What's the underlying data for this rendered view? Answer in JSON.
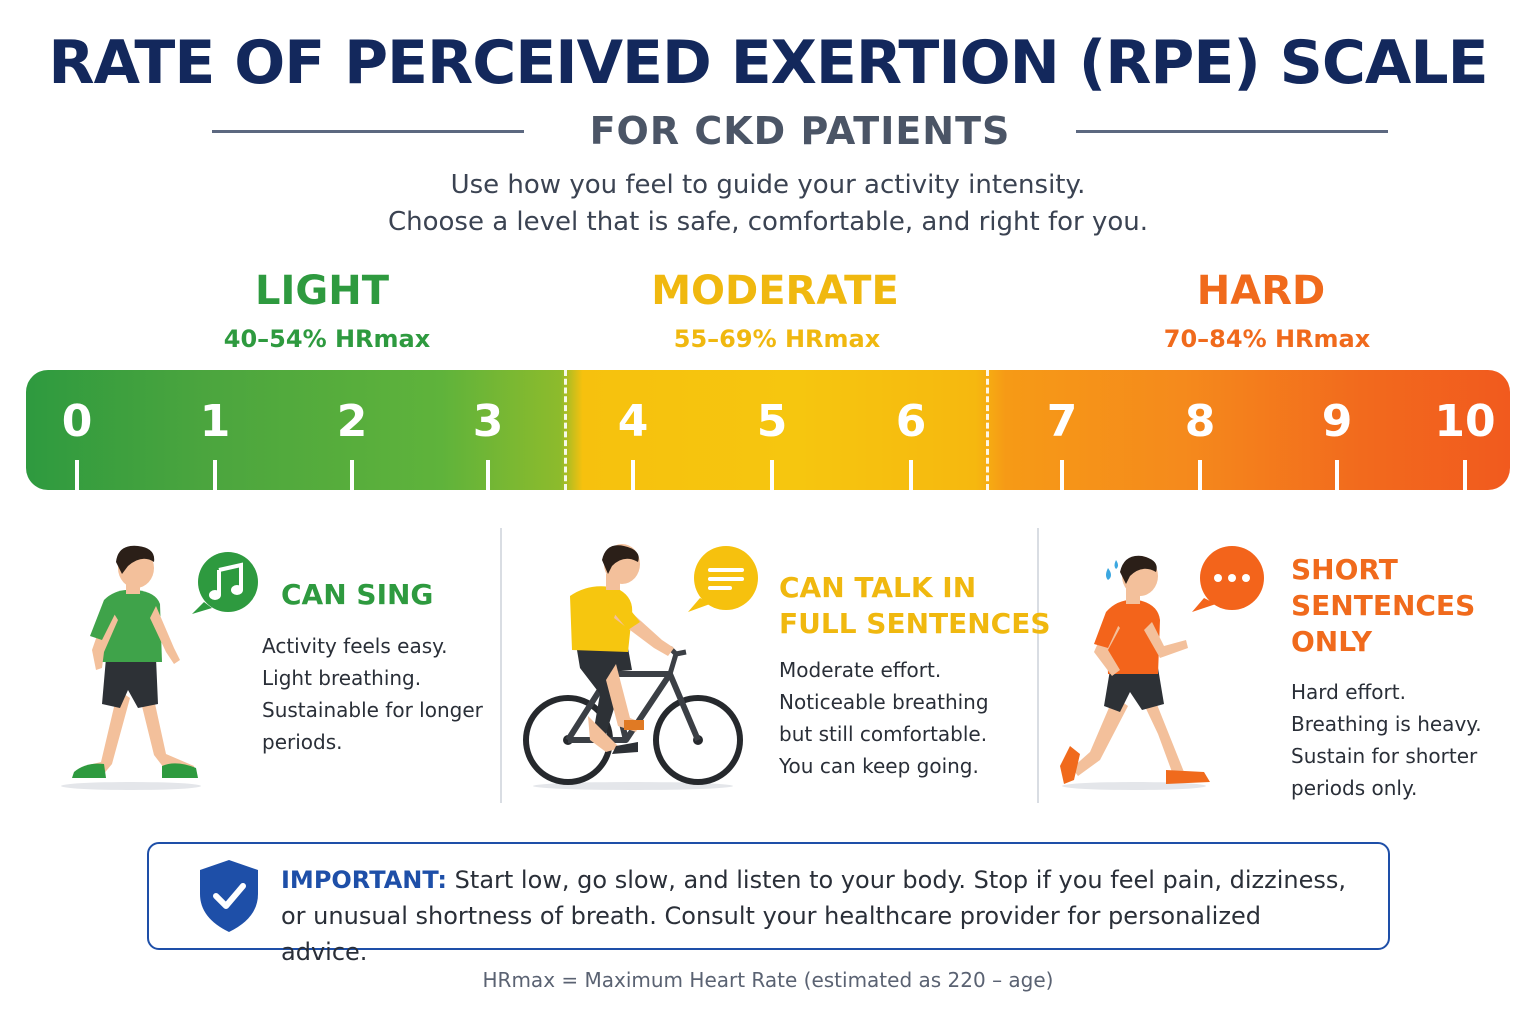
{
  "title": "RATE OF PERCEIVED EXERTION (RPE) SCALE",
  "subtitle": "FOR CKD PATIENTS",
  "intro": [
    "Use how you feel to guide your activity intensity.",
    "Choose a level that is safe, comfortable, and right for you."
  ],
  "zones": [
    {
      "name": "LIGHT",
      "hr": "40–54% HRmax",
      "color": "#2e9a3f"
    },
    {
      "name": "MODERATE",
      "hr": "55–69% HRmax",
      "color": "#f0b80f"
    },
    {
      "name": "HARD",
      "hr": "70–84% HRmax",
      "color": "#f06a1c"
    }
  ],
  "scale": [
    "0",
    "1",
    "2",
    "3",
    "4",
    "5",
    "6",
    "7",
    "8",
    "9",
    "10"
  ],
  "panels": [
    {
      "caption": "CAN SING",
      "lines": [
        "Activity feels easy.",
        "Light breathing.",
        "Sustainable for longer",
        "periods."
      ],
      "icon": "music-note-icon",
      "figure": "walking-person-icon",
      "color": "#2e9a3f"
    },
    {
      "caption": [
        "CAN TALK IN",
        "FULL SENTENCES"
      ],
      "lines": [
        "Moderate effort.",
        "Noticeable breathing",
        "but still comfortable.",
        "You can keep going."
      ],
      "icon": "text-lines-icon",
      "figure": "cyclist-icon",
      "color": "#f0b80f"
    },
    {
      "caption": [
        "SHORT",
        "SENTENCES",
        "ONLY"
      ],
      "lines": [
        "Hard effort.",
        "Breathing is heavy.",
        "Sustain for shorter",
        "periods only."
      ],
      "icon": "ellipsis-icon",
      "figure": "runner-icon",
      "color": "#f06a1c"
    }
  ],
  "important": {
    "label": "IMPORTANT:",
    "text": "Start low, go slow, and listen to your body. Stop if you feel pain, dizziness, or unusual shortness of breath. Consult your healthcare provider for personalized advice.",
    "icon": "shield-check-icon",
    "color": "#1e4fa8"
  },
  "footnote": "HRmax = Maximum Heart Rate (estimated as 220 – age)"
}
